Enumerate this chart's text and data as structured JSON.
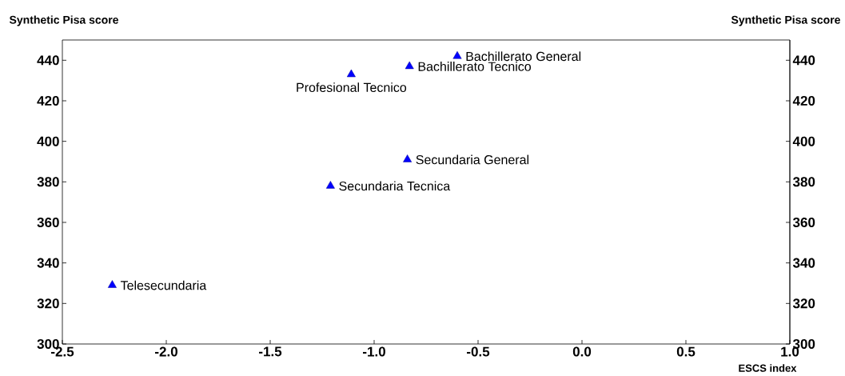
{
  "chart_data": {
    "type": "scatter",
    "ylabel": "Synthetic Pisa score",
    "y2label": "Synthetic Pisa score",
    "xlabel": "ESCS index",
    "xlim": [
      -2.5,
      1.0
    ],
    "xticks": [
      {
        "value": -2.5,
        "label": "-2.5"
      },
      {
        "value": -2.0,
        "label": "-2.0"
      },
      {
        "value": -1.5,
        "label": "-1.5"
      },
      {
        "value": -1.0,
        "label": "-1.0"
      },
      {
        "value": -0.5,
        "label": "-0.5"
      },
      {
        "value": 0.0,
        "label": "0.0"
      },
      {
        "value": 0.5,
        "label": "0.5"
      },
      {
        "value": 1.0,
        "label": "1.0"
      }
    ],
    "ylim": [
      300,
      450
    ],
    "yticks": [
      300,
      320,
      340,
      360,
      380,
      400,
      420,
      440
    ],
    "y2lim": [
      300,
      450
    ],
    "y2ticks": [
      300,
      320,
      340,
      360,
      380,
      400,
      420,
      440
    ],
    "marker": "triangle",
    "grid": false,
    "legend": false,
    "series": [
      {
        "color": "#0000ff",
        "x": [
          -2.26,
          -1.21,
          -0.84,
          -1.11,
          -0.83,
          -0.6
        ],
        "values": [
          329,
          378,
          391,
          433,
          437,
          442
        ]
      }
    ],
    "annotations": [
      {
        "text": "Telesecundaria",
        "x": -2.26,
        "y": 329
      },
      {
        "text": "Secundaria Tecnica",
        "x": -1.21,
        "y": 378
      },
      {
        "text": "Secundaria General",
        "x": -0.84,
        "y": 391
      },
      {
        "text": "Profesional Tecnico",
        "x": -1.11,
        "y": 433
      },
      {
        "text": "Bachillerato Tecnico",
        "x": -0.83,
        "y": 437
      },
      {
        "text": "Bachillerato General",
        "x": -0.6,
        "y": 442
      }
    ]
  }
}
